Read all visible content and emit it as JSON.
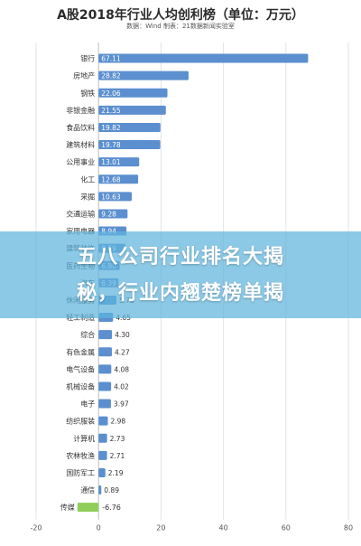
{
  "banner": {
    "line1": "五八公司行业排名大揭",
    "line2": "秘，行业内翘楚榜单揭"
  },
  "chart_data": {
    "type": "bar",
    "orientation": "horizontal",
    "title": "A股2018年行业人均创利榜（单位：万元）",
    "subtitle": "数据：Wind    制表：21数据新闻实验室",
    "xlim": [
      -20,
      80
    ],
    "xticks": [
      -20,
      0,
      20,
      40,
      60,
      80
    ],
    "grid": true,
    "bar_color": "#5b8fcf",
    "negative_bar_color": "#8fce5a",
    "categories": [
      "银行",
      "房地产",
      "钢铁",
      "非银金融",
      "食品饮料",
      "建筑材料",
      "公用事业",
      "化工",
      "采掘",
      "交通运输",
      "家用电器",
      "建筑装饰",
      "医药生物",
      "汽车",
      "休闲服务",
      "轻工制造",
      "综合",
      "有色金属",
      "电气设备",
      "机械设备",
      "电子",
      "纺织服装",
      "计算机",
      "农林牧渔",
      "国防军工",
      "通信",
      "传媒"
    ],
    "values": [
      67.11,
      28.82,
      22.06,
      21.55,
      19.82,
      19.78,
      13.01,
      12.68,
      10.63,
      9.28,
      8.94,
      8.59,
      6.8,
      6.39,
      5.73,
      4.65,
      4.3,
      4.27,
      4.08,
      4.02,
      3.97,
      2.98,
      2.73,
      2.71,
      2.19,
      0.89,
      -6.76
    ],
    "labels": [
      "67.11",
      "28.82",
      "22.06",
      "21.55",
      "19.82",
      "19.78",
      "13.01",
      "12.68",
      "10.63",
      "9.28",
      "8.94",
      "8.59",
      "6.80",
      "6.39",
      "5.73",
      "4.65",
      "4.30",
      "4.27",
      "4.08",
      "4.02",
      "3.97",
      "2.98",
      "2.73",
      "2.71",
      "2.19",
      "0.89",
      "-6.76"
    ]
  }
}
